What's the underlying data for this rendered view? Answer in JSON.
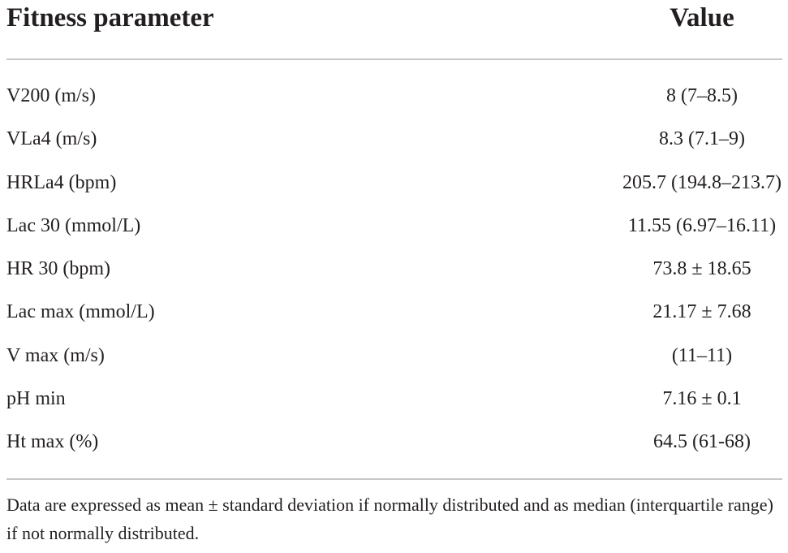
{
  "table": {
    "headers": {
      "param": "Fitness parameter",
      "value": "Value"
    },
    "rows": [
      {
        "param": "V200 (m/s)",
        "value": "8 (7–8.5)"
      },
      {
        "param": "VLa4 (m/s)",
        "value": "8.3 (7.1–9)"
      },
      {
        "param": "HRLa4 (bpm)",
        "value": "205.7 (194.8–213.7)"
      },
      {
        "param": "Lac 30 (mmol/L)",
        "value": "11.55 (6.97–16.11)"
      },
      {
        "param": "HR 30 (bpm)",
        "value": "73.8 ± 18.65"
      },
      {
        "param": "Lac max (mmol/L)",
        "value": "21.17 ± 7.68"
      },
      {
        "param": "V max (m/s)",
        "value": "(11–11)"
      },
      {
        "param": "pH min",
        "value": "7.16 ± 0.1"
      },
      {
        "param": "Ht max (%)",
        "value": "64.5 (61-68)"
      }
    ],
    "footnote": "Data are expressed as mean ± standard deviation if normally distributed and as median (interquartile range) if not normally distributed."
  }
}
